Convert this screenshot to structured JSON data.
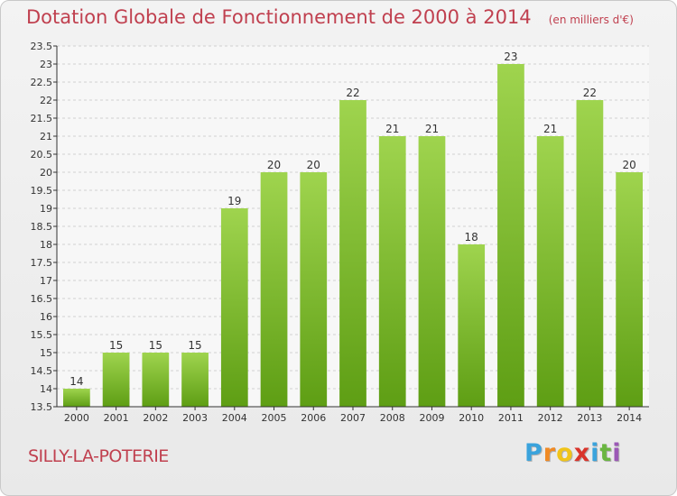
{
  "header": {
    "title": "Dotation Globale de Fonctionnement de 2000 à 2014",
    "subtitle": "(en milliers d'€)"
  },
  "footer": {
    "town": "SILLY-LA-POTERIE",
    "logo_letters": [
      "P",
      "r",
      "o",
      "x",
      "i",
      "t",
      "i"
    ],
    "logo_colors": [
      "#3aa3dc",
      "#f08a24",
      "#f0c419",
      "#d9342b",
      "#3aa3dc",
      "#6ab640",
      "#9b59b6"
    ]
  },
  "colors": {
    "title": "#c0404f",
    "bar_top": "#9fd44e",
    "bar_bottom": "#5e9e14",
    "grid": "#d0d0d0",
    "axis": "#333333"
  },
  "chart_data": {
    "type": "bar",
    "title": "Dotation Globale de Fonctionnement de 2000 à 2014",
    "subtitle": "(en milliers d'€)",
    "categories": [
      "2000",
      "2001",
      "2002",
      "2003",
      "2004",
      "2005",
      "2006",
      "2007",
      "2008",
      "2009",
      "2010",
      "2011",
      "2012",
      "2013",
      "2014"
    ],
    "values": [
      14,
      15,
      15,
      15,
      19,
      20,
      20,
      22,
      21,
      21,
      18,
      23,
      21,
      22,
      20
    ],
    "ylim": [
      13.5,
      23.5
    ],
    "yticks": [
      13.5,
      14,
      14.5,
      15,
      15.5,
      16,
      16.5,
      17,
      17.5,
      18,
      18.5,
      19,
      19.5,
      20,
      20.5,
      21,
      21.5,
      22,
      22.5,
      23,
      23.5
    ],
    "grid": true,
    "xlabel": "",
    "ylabel": ""
  }
}
